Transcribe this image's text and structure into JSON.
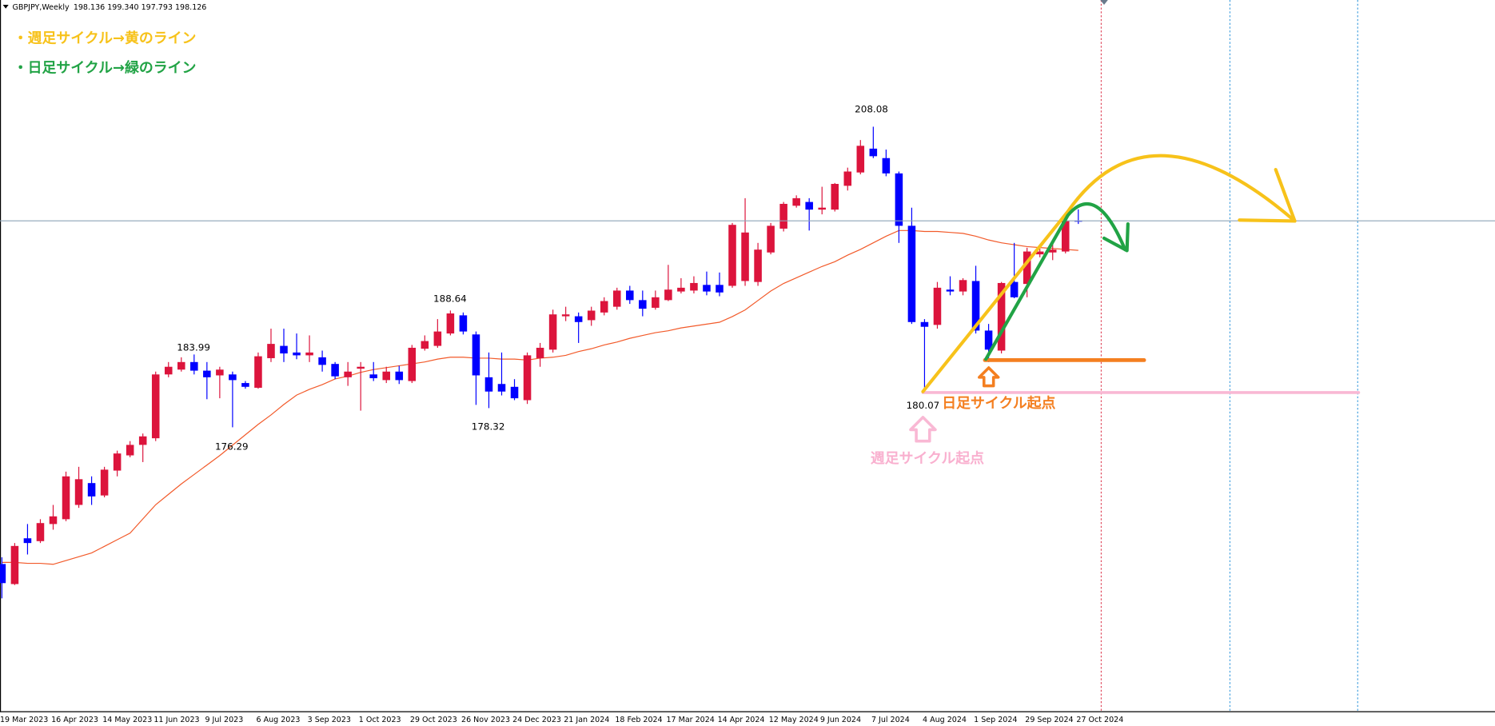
{
  "chart_data": {
    "type": "candlestick",
    "symbol": "GBPJPY,Weekly",
    "ohlc_label": "198.136 199.340 197.793 198.126",
    "categories": [
      "19 Mar 2023",
      null,
      null,
      null,
      "16 Apr 2023",
      null,
      null,
      null,
      "14 May 2023",
      null,
      null,
      null,
      "11 Jun 2023",
      null,
      null,
      null,
      "9 Jul 2023",
      null,
      null,
      null,
      "6 Aug 2023",
      null,
      null,
      null,
      "3 Sep 2023",
      null,
      null,
      null,
      "1 Oct 2023",
      null,
      null,
      null,
      "29 Oct 2023",
      null,
      null,
      null,
      "26 Nov 2023",
      null,
      null,
      null,
      "24 Dec 2023",
      null,
      null,
      null,
      "21 Jan 2024",
      null,
      null,
      null,
      "18 Feb 2024",
      null,
      null,
      null,
      "17 Mar 2024",
      null,
      null,
      null,
      "14 Apr 2024",
      null,
      null,
      null,
      "12 May 2024",
      null,
      null,
      null,
      "9 Jun 2024",
      null,
      null,
      null,
      "7 Jul 2024",
      null,
      null,
      null,
      "4 Aug 2024",
      null,
      null,
      null,
      "1 Sep 2024",
      null,
      null,
      null,
      "29 Sep 2024",
      null,
      null,
      null,
      "27 Oct 2024"
    ],
    "open": [
      161.83,
      159.71,
      164.55,
      164.25,
      166.06,
      166.57,
      168.08,
      170.39,
      169.08,
      171.71,
      173.32,
      174.43,
      175.13,
      181.88,
      182.39,
      183.19,
      182.28,
      181.78,
      181.88,
      180.97,
      180.47,
      183.6,
      184.9,
      184.2,
      183.9,
      183.69,
      182.99,
      181.58,
      182.49,
      181.88,
      181.28,
      182.18,
      181.18,
      184.6,
      184.9,
      186.21,
      188.13,
      186.11,
      181.58,
      180.87,
      180.57,
      179.16,
      183.6,
      184.5,
      188.03,
      188.03,
      187.62,
      188.43,
      189.04,
      190.75,
      189.74,
      188.93,
      189.74,
      190.65,
      190.75,
      191.35,
      191.35,
      191.25,
      191.76,
      191.66,
      194.78,
      197.3,
      199.72,
      200.12,
      199.31,
      199.31,
      201.83,
      203.24,
      205.76,
      204.76,
      203.14,
      197.6,
      187.42,
      187.12,
      190.85,
      190.65,
      191.76,
      186.52,
      184.4,
      191.66,
      191.45,
      194.58,
      194.78,
      194.88,
      198.136
    ],
    "high": [
      162.54,
      164.05,
      166.06,
      166.57,
      168.08,
      171.6,
      172.11,
      171.1,
      172.11,
      173.82,
      174.83,
      175.63,
      182.18,
      183.19,
      183.69,
      183.99,
      183.19,
      182.69,
      182.18,
      181.18,
      184.2,
      186.72,
      186.72,
      186.21,
      186.01,
      184.4,
      183.19,
      183.19,
      183.19,
      183.19,
      182.69,
      182.79,
      185.0,
      186.01,
      187.73,
      188.64,
      188.43,
      186.42,
      184.2,
      184.2,
      181.38,
      184.2,
      185.21,
      188.73,
      189.04,
      188.43,
      189.04,
      190.04,
      191.05,
      191.25,
      190.75,
      190.75,
      193.47,
      192.06,
      192.26,
      192.76,
      192.66,
      197.9,
      200.52,
      195.79,
      197.9,
      200.12,
      200.82,
      200.52,
      201.73,
      202.13,
      203.75,
      206.67,
      208.08,
      205.66,
      203.34,
      199.52,
      187.73,
      191.66,
      192.26,
      192.06,
      193.37,
      187.22,
      191.66,
      195.79,
      195.28,
      195.48,
      195.79,
      198.71,
      199.34
    ],
    "low": [
      158.2,
      159.61,
      162.84,
      164.05,
      165.46,
      166.36,
      167.77,
      168.08,
      168.88,
      171.1,
      173.12,
      172.61,
      174.83,
      181.58,
      182.18,
      181.88,
      179.26,
      179.36,
      176.29,
      180.37,
      180.37,
      183.19,
      183.19,
      183.49,
      183.19,
      182.18,
      181.38,
      180.67,
      178.05,
      181.18,
      180.97,
      180.87,
      180.97,
      184.4,
      184.7,
      186.01,
      186.11,
      178.66,
      178.32,
      179.66,
      179.16,
      178.76,
      182.69,
      184.2,
      187.52,
      185.21,
      187.02,
      188.13,
      188.73,
      189.34,
      188.03,
      188.73,
      189.64,
      190.45,
      190.45,
      190.25,
      190.15,
      191.05,
      191.25,
      191.25,
      194.58,
      197.0,
      199.52,
      197.1,
      198.81,
      199.11,
      201.33,
      203.04,
      204.76,
      202.84,
      195.79,
      187.22,
      180.07,
      186.72,
      190.25,
      190.25,
      186.21,
      183.19,
      184.1,
      189.94,
      190.04,
      194.27,
      193.97,
      194.68,
      197.793
    ],
    "close": [
      159.81,
      163.74,
      164.05,
      166.16,
      166.87,
      171.1,
      170.8,
      168.98,
      171.81,
      173.52,
      174.43,
      175.33,
      181.88,
      182.69,
      183.19,
      182.28,
      181.58,
      182.39,
      181.28,
      180.57,
      183.8,
      185.11,
      184.1,
      183.9,
      184.2,
      182.89,
      181.68,
      182.18,
      182.69,
      181.48,
      182.18,
      181.28,
      184.7,
      185.41,
      186.42,
      188.33,
      186.42,
      181.78,
      180.07,
      180.07,
      179.36,
      183.9,
      184.7,
      188.23,
      188.23,
      187.42,
      188.63,
      189.64,
      190.75,
      189.74,
      188.83,
      190.04,
      190.85,
      191.05,
      191.55,
      190.65,
      190.55,
      197.7,
      196.89,
      195.08,
      197.6,
      199.92,
      200.52,
      199.31,
      199.52,
      202.03,
      203.34,
      206.06,
      204.96,
      203.14,
      197.6,
      187.42,
      186.92,
      191.05,
      190.65,
      191.86,
      186.52,
      184.5,
      191.55,
      190.04,
      194.88,
      194.88,
      195.08,
      198.1,
      198.126
    ],
    "up_color": "#dc143c",
    "down_color": "#0000ff",
    "ma": {
      "color": "#f25a2a",
      "values": [
        162.0,
        162.0,
        161.9,
        161.9,
        161.8,
        162.2,
        162.6,
        163.0,
        163.7,
        164.4,
        165.1,
        166.6,
        168.1,
        169.2,
        170.3,
        171.3,
        172.3,
        173.3,
        174.4,
        175.5,
        176.6,
        177.6,
        178.7,
        179.7,
        180.3,
        180.8,
        181.4,
        181.7,
        182.1,
        182.4,
        182.6,
        182.8,
        183.0,
        183.2,
        183.5,
        183.7,
        183.7,
        183.6,
        183.6,
        183.5,
        183.5,
        183.4,
        183.6,
        183.7,
        183.9,
        184.3,
        184.6,
        185.0,
        185.3,
        185.7,
        186.0,
        186.3,
        186.5,
        186.8,
        187.0,
        187.2,
        187.4,
        188.0,
        188.7,
        189.7,
        190.7,
        191.5,
        192.1,
        192.7,
        193.3,
        193.8,
        194.5,
        195.1,
        195.8,
        196.5,
        197.1,
        197.1,
        197.0,
        197.0,
        196.9,
        196.8,
        196.5,
        196.1,
        195.8,
        195.6,
        195.4,
        195.3,
        195.2,
        195.1,
        195.0
      ]
    },
    "bid_line_color": "#8ea4b8",
    "ylim": [
      146.21,
      221.48
    ],
    "annotations": [
      "・週足サイクル→黄のライン",
      "・日足サイクル→緑のライン",
      "日足サイクル起点",
      "週足サイクル起点"
    ]
  }
}
